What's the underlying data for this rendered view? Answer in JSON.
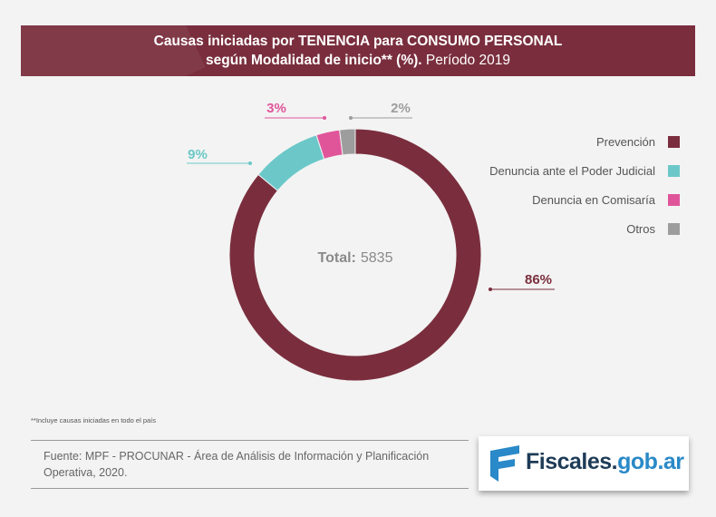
{
  "header": {
    "title_line1": "Causas iniciadas por TENENCIA para CONSUMO PERSONAL",
    "title_line2_bold": "según Modalidad de inicio** (%).",
    "title_line2_rest": " Período 2019"
  },
  "center": {
    "total_label": "Total:",
    "total_value": "5835"
  },
  "chart_data": {
    "type": "pie",
    "variant": "donut",
    "title": "Causas iniciadas por TENENCIA para CONSUMO PERSONAL según Modalidad de inicio** (%). Período 2019",
    "total": 5835,
    "legend_position": "right",
    "slices": [
      {
        "label": "Prevención",
        "value": 86,
        "display": "86%",
        "color": "#7a2e3d"
      },
      {
        "label": "Denuncia ante el Poder Judicial",
        "value": 9,
        "display": "9%",
        "color": "#6cc8c8"
      },
      {
        "label": "Denuncia en Comisaría",
        "value": 3,
        "display": "3%",
        "color": "#e0559a"
      },
      {
        "label": "Otros",
        "value": 2,
        "display": "2%",
        "color": "#9d9d9d"
      }
    ]
  },
  "footnote": "**Incluye causas iniciadas en todo el país",
  "source": "Fuente: MPF - PROCUNAR - Área de Análisis de Información y Planificación Operativa, 2020.",
  "logo": {
    "part1": "Fiscales.",
    "part2": "gob.ar",
    "mark_color": "#2a89c8",
    "text_color": "#1d3b57"
  }
}
